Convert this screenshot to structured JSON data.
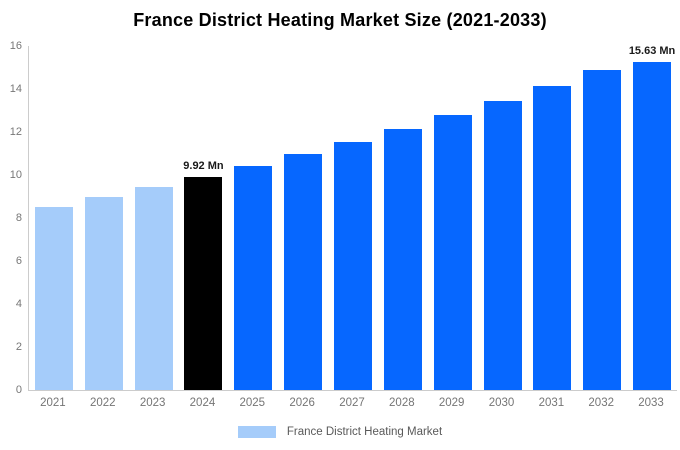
{
  "chart_data": {
    "type": "bar",
    "title": "France District Heating Market Size (2021-2033)",
    "categories": [
      "2021",
      "2022",
      "2023",
      "2024",
      "2025",
      "2026",
      "2027",
      "2028",
      "2029",
      "2030",
      "2031",
      "2032",
      "2033"
    ],
    "values": [
      8.52,
      8.97,
      9.43,
      9.92,
      10.43,
      10.97,
      11.54,
      12.14,
      12.77,
      13.43,
      14.13,
      14.89,
      15.63
    ],
    "bar_colors": [
      "#a5ccfa",
      "#a5ccfa",
      "#a5ccfa",
      "#000000",
      "#0667ff",
      "#0667ff",
      "#0667ff",
      "#0667ff",
      "#0667ff",
      "#0667ff",
      "#0667ff",
      "#0667ff",
      "#0667ff"
    ],
    "annotations": [
      {
        "index": 3,
        "text": "9.92 Mn"
      },
      {
        "index": 12,
        "text": "15.63 Mn"
      }
    ],
    "xlabel": "",
    "ylabel": "",
    "ylim": [
      0,
      16
    ],
    "yticks": [
      0,
      2,
      4,
      6,
      8,
      10,
      12,
      14,
      16
    ],
    "grid": false,
    "legend_position": "bottom"
  },
  "legend": {
    "items": [
      {
        "label": "France District Heating Market",
        "color": "#a5ccfa"
      }
    ]
  },
  "colors": {
    "historical_bar": "#a5ccfa",
    "highlight_bar": "#000000",
    "forecast_bar": "#0667ff",
    "axis_line": "#cccccc",
    "tick_text": "#777777",
    "title_text": "#000000"
  }
}
